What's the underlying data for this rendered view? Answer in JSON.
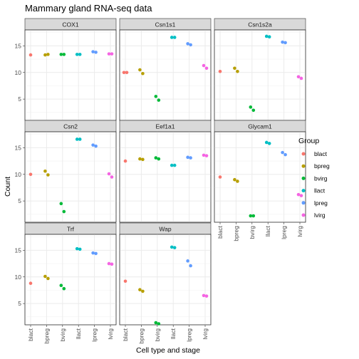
{
  "chart_data": {
    "type": "scatter",
    "title": "Mammary gland RNA-seq data",
    "xlabel": "Cell type and stage",
    "ylabel": "Count",
    "categories": [
      "blact",
      "bpreg",
      "bvirg",
      "llact",
      "lpreg",
      "lvirg"
    ],
    "ylim": [
      1,
      18
    ],
    "yticks": [
      5,
      10,
      15
    ],
    "legend": {
      "title": "Group",
      "placement": "right",
      "entries": [
        {
          "label": "blact",
          "color": "#F8766D"
        },
        {
          "label": "bpreg",
          "color": "#B79F00"
        },
        {
          "label": "bvirg",
          "color": "#00BA38"
        },
        {
          "label": "llact",
          "color": "#00BFC4"
        },
        {
          "label": "lpreg",
          "color": "#619CFF"
        },
        {
          "label": "lvirg",
          "color": "#F564E3"
        }
      ]
    },
    "facets": [
      {
        "name": "COX1",
        "points": [
          {
            "group": "blact",
            "values": [
              13.3
            ]
          },
          {
            "group": "bpreg",
            "values": [
              13.3,
              13.4
            ]
          },
          {
            "group": "bvirg",
            "values": [
              13.4,
              13.4
            ]
          },
          {
            "group": "llact",
            "values": [
              13.4,
              13.4
            ]
          },
          {
            "group": "lpreg",
            "values": [
              13.9,
              13.8
            ]
          },
          {
            "group": "lvirg",
            "values": [
              13.5,
              13.5
            ]
          }
        ]
      },
      {
        "name": "Csn1s1",
        "points": [
          {
            "group": "blact",
            "values": [
              10.0,
              10.0
            ]
          },
          {
            "group": "bpreg",
            "values": [
              10.5,
              9.8
            ]
          },
          {
            "group": "bvirg",
            "values": [
              5.5,
              4.8
            ]
          },
          {
            "group": "llact",
            "values": [
              16.6,
              16.6
            ]
          },
          {
            "group": "lpreg",
            "values": [
              15.4,
              15.2
            ]
          },
          {
            "group": "lvirg",
            "values": [
              11.3,
              10.8
            ]
          }
        ]
      },
      {
        "name": "Csn1s2a",
        "points": [
          {
            "group": "blact",
            "values": [
              10.2
            ]
          },
          {
            "group": "bpreg",
            "values": [
              10.8,
              10.2
            ]
          },
          {
            "group": "bvirg",
            "values": [
              3.5,
              2.9
            ]
          },
          {
            "group": "llact",
            "values": [
              16.8,
              16.7
            ]
          },
          {
            "group": "lpreg",
            "values": [
              15.7,
              15.6
            ]
          },
          {
            "group": "lvirg",
            "values": [
              9.2,
              8.9
            ]
          }
        ]
      },
      {
        "name": "Csn2",
        "points": [
          {
            "group": "blact",
            "values": [
              10.0
            ]
          },
          {
            "group": "bpreg",
            "values": [
              10.6,
              9.9
            ]
          },
          {
            "group": "bvirg",
            "values": [
              4.5,
              3.0
            ]
          },
          {
            "group": "llact",
            "values": [
              16.6,
              16.6
            ]
          },
          {
            "group": "lpreg",
            "values": [
              15.5,
              15.3
            ]
          },
          {
            "group": "lvirg",
            "values": [
              10.1,
              9.5
            ]
          }
        ]
      },
      {
        "name": "Eef1a1",
        "points": [
          {
            "group": "blact",
            "values": [
              12.5
            ]
          },
          {
            "group": "bpreg",
            "values": [
              12.9,
              12.8
            ]
          },
          {
            "group": "bvirg",
            "values": [
              13.1,
              12.9
            ]
          },
          {
            "group": "llact",
            "values": [
              11.7,
              11.7
            ]
          },
          {
            "group": "lpreg",
            "values": [
              13.2,
              13.1
            ]
          },
          {
            "group": "lvirg",
            "values": [
              13.6,
              13.5
            ]
          }
        ]
      },
      {
        "name": "Glycam1",
        "points": [
          {
            "group": "blact",
            "values": [
              9.5
            ]
          },
          {
            "group": "bpreg",
            "values": [
              9.0,
              8.7
            ]
          },
          {
            "group": "bvirg",
            "values": [
              2.2,
              2.2
            ]
          },
          {
            "group": "llact",
            "values": [
              16.0,
              15.8
            ]
          },
          {
            "group": "lpreg",
            "values": [
              14.1,
              13.7
            ]
          },
          {
            "group": "lvirg",
            "values": [
              6.2,
              6.0
            ]
          }
        ]
      },
      {
        "name": "Trf",
        "points": [
          {
            "group": "blact",
            "values": [
              8.8
            ]
          },
          {
            "group": "bpreg",
            "values": [
              10.1,
              9.7
            ]
          },
          {
            "group": "bvirg",
            "values": [
              8.4,
              7.8
            ]
          },
          {
            "group": "llact",
            "values": [
              15.3,
              15.2
            ]
          },
          {
            "group": "lpreg",
            "values": [
              14.5,
              14.4
            ]
          },
          {
            "group": "lvirg",
            "values": [
              12.5,
              12.4
            ]
          }
        ]
      },
      {
        "name": "Wap",
        "points": [
          {
            "group": "blact",
            "values": [
              9.2
            ]
          },
          {
            "group": "bpreg",
            "values": [
              7.6,
              7.3
            ]
          },
          {
            "group": "bvirg",
            "values": [
              1.4,
              1.2
            ]
          },
          {
            "group": "llact",
            "values": [
              15.6,
              15.5
            ]
          },
          {
            "group": "lpreg",
            "values": [
              13.0,
              12.1
            ]
          },
          {
            "group": "lvirg",
            "values": [
              6.5,
              6.4
            ]
          }
        ]
      }
    ]
  }
}
